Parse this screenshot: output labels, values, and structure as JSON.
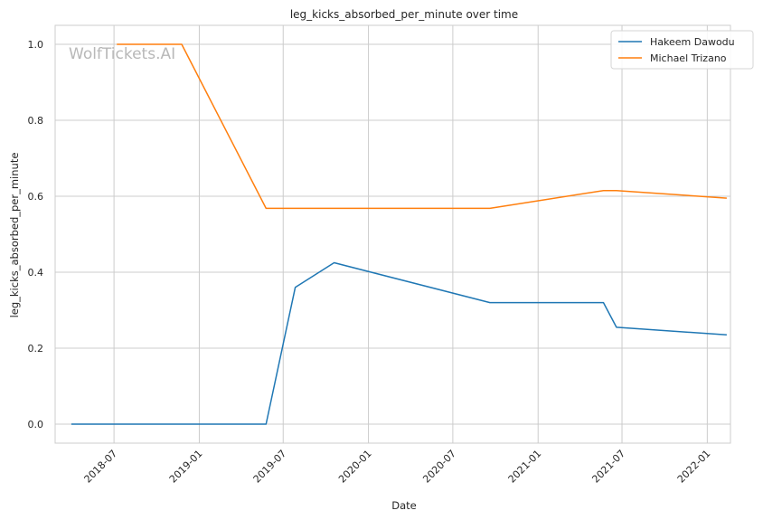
{
  "chart_data": {
    "type": "line",
    "title": "leg_kicks_absorbed_per_minute over time",
    "xlabel": "Date",
    "ylabel": "leg_kicks_absorbed_per_minute",
    "watermark": "WolfTickets.AI",
    "x_ticks": [
      "2018-07",
      "2019-01",
      "2019-07",
      "2020-01",
      "2020-07",
      "2021-01",
      "2021-07",
      "2022-01"
    ],
    "y_ticks": [
      "0.0",
      "0.2",
      "0.4",
      "0.6",
      "0.8",
      "1.0"
    ],
    "xlim": [
      "2018-02-24",
      "2022-02-20"
    ],
    "ylim": [
      -0.05,
      1.05
    ],
    "grid": true,
    "legend_position": "top-right",
    "series": [
      {
        "name": "Hakeem Dawodu",
        "color": "#1f77b4",
        "points": [
          {
            "date": "2018-03-31",
            "value": 0.0
          },
          {
            "date": "2019-05-25",
            "value": 0.0
          },
          {
            "date": "2019-07-27",
            "value": 0.36
          },
          {
            "date": "2019-10-19",
            "value": 0.425
          },
          {
            "date": "2020-09-19",
            "value": 0.32
          },
          {
            "date": "2021-05-22",
            "value": 0.32
          },
          {
            "date": "2021-06-19",
            "value": 0.255
          },
          {
            "date": "2022-02-12",
            "value": 0.235
          }
        ]
      },
      {
        "name": "Michael Trizano",
        "color": "#ff7f0e",
        "points": [
          {
            "date": "2018-07-07",
            "value": 1.0
          },
          {
            "date": "2018-11-24",
            "value": 1.0
          },
          {
            "date": "2019-05-25",
            "value": 0.568
          },
          {
            "date": "2020-09-19",
            "value": 0.568
          },
          {
            "date": "2021-05-22",
            "value": 0.615
          },
          {
            "date": "2021-06-19",
            "value": 0.615
          },
          {
            "date": "2022-02-12",
            "value": 0.595
          }
        ]
      }
    ]
  }
}
